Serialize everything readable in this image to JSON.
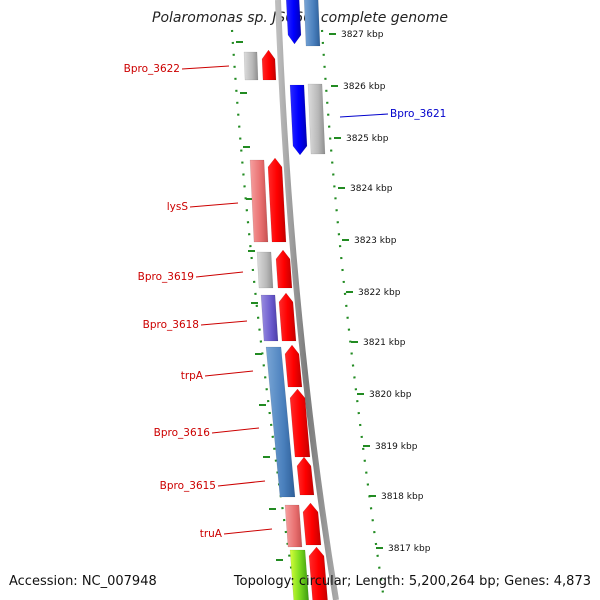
{
  "title": "Polaromonas sp. JS666, complete genome",
  "footer": {
    "accession": "Accession: NC_007948",
    "topology": "Topology: circular; Length: 5,200,264 bp; Genes: 4,873"
  },
  "colors": {
    "red": "#ff0000",
    "blue": "#0000ff",
    "grey_label": "#cc0000",
    "tick_green": "#228b22",
    "backbone": "#8a8a8a"
  },
  "scale_labels": [
    "3827 kbp",
    "3826 kbp",
    "3825 kbp",
    "3824 kbp",
    "3823 kbp",
    "3822 kbp",
    "3821 kbp",
    "3820 kbp",
    "3819 kbp",
    "3818 kbp",
    "3817 kbp"
  ],
  "gene_labels": [
    {
      "text": "Bpro_3622",
      "color": "#cc0000"
    },
    {
      "text": "Bpro_3621",
      "color": "#0000cc"
    },
    {
      "text": "lysS",
      "color": "#cc0000"
    },
    {
      "text": "Bpro_3619",
      "color": "#cc0000"
    },
    {
      "text": "Bpro_3618",
      "color": "#cc0000"
    },
    {
      "text": "trpA",
      "color": "#cc0000"
    },
    {
      "text": "Bpro_3616",
      "color": "#cc0000"
    },
    {
      "text": "Bpro_3615",
      "color": "#cc0000"
    },
    {
      "text": "truA",
      "color": "#cc0000"
    }
  ]
}
